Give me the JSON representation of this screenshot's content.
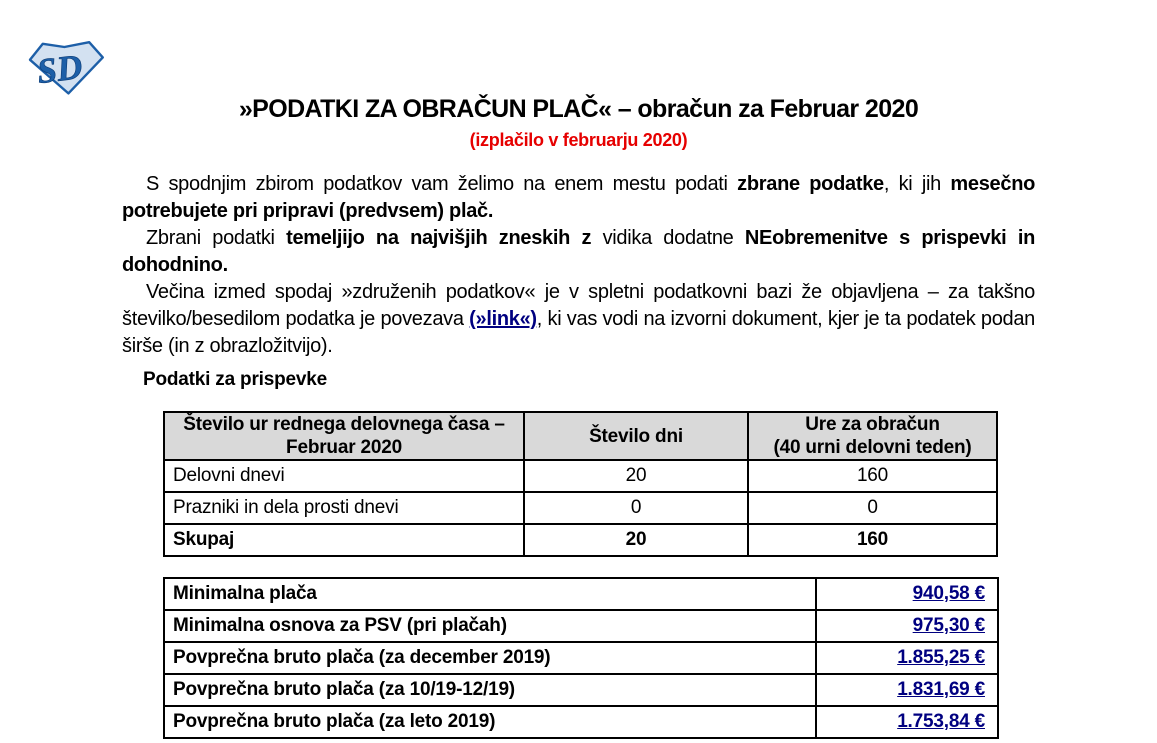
{
  "colors": {
    "accent_red": "#e60000",
    "link_navy": "#000080",
    "table_header_bg": "#d9d9d9",
    "logo_blue": "#1d5fa8",
    "logo_fill": "#d3e1f1"
  },
  "logo": {
    "letters": "SD"
  },
  "header": {
    "title": "»PODATKI ZA OBRAČUN PLAČ« – obračun za Februar 2020",
    "subtitle": "(izplačilo v februarju 2020)"
  },
  "paragraphs": [
    {
      "segments": [
        {
          "text": "S spodnjim zbirom podatkov vam želimo na enem mestu podati ",
          "style": "regular"
        },
        {
          "text": "zbrane podatke",
          "style": "bold"
        },
        {
          "text": ", ki jih ",
          "style": "regular"
        },
        {
          "text": "mesečno potrebujete pri pripravi (predvsem) plač.",
          "style": "bold"
        }
      ]
    },
    {
      "segments": [
        {
          "text": "Zbrani podatki ",
          "style": "regular"
        },
        {
          "text": "temeljijo na najvišjih zneskih z ",
          "style": "bold"
        },
        {
          "text": "vidika dodatne ",
          "style": "regular"
        },
        {
          "text": "NEobremenitve s prispevki in dohodnino.",
          "style": "bold"
        }
      ]
    },
    {
      "segments": [
        {
          "text": "Večina izmed spodaj »združenih podatkov« je v spletni podatkovni bazi že objavljena – za takšno številko/besedilom podatka je povezava ",
          "style": "regular"
        },
        {
          "text": "(»link«)",
          "style": "link"
        },
        {
          "text": ", ki vas vodi na izvorni dokument, kjer je ta podatek podan širše (in z obrazložitvijo).",
          "style": "regular"
        }
      ]
    }
  ],
  "section_heading": "Podatki za prispevke",
  "hours_table": {
    "headers": [
      "Število ur rednega delovnega časa –\nFebruar 2020",
      "Število dni",
      "Ure za obračun\n(40 urni delovni teden)"
    ],
    "rows": [
      {
        "label": "Delovni dnevi",
        "dni": "20",
        "ure": "160",
        "total": false
      },
      {
        "label": "Prazniki in dela prosti dnevi",
        "dni": "0",
        "ure": "0",
        "total": false
      },
      {
        "label": "Skupaj",
        "dni": "20",
        "ure": "160",
        "total": true
      }
    ]
  },
  "amounts_table": {
    "rows": [
      {
        "label": "Minimalna plača",
        "value": "940,58 €"
      },
      {
        "label": "Minimalna osnova za PSV (pri plačah)",
        "value": "975,30 €"
      },
      {
        "label": "Povprečna bruto plača (za december 2019)",
        "value": "1.855,25 €"
      },
      {
        "label": "Povprečna bruto plača (za 10/19-12/19)",
        "value": "1.831,69 €"
      },
      {
        "label": "Povprečna bruto plača (za leto 2019)",
        "value": "1.753,84 €"
      }
    ]
  }
}
